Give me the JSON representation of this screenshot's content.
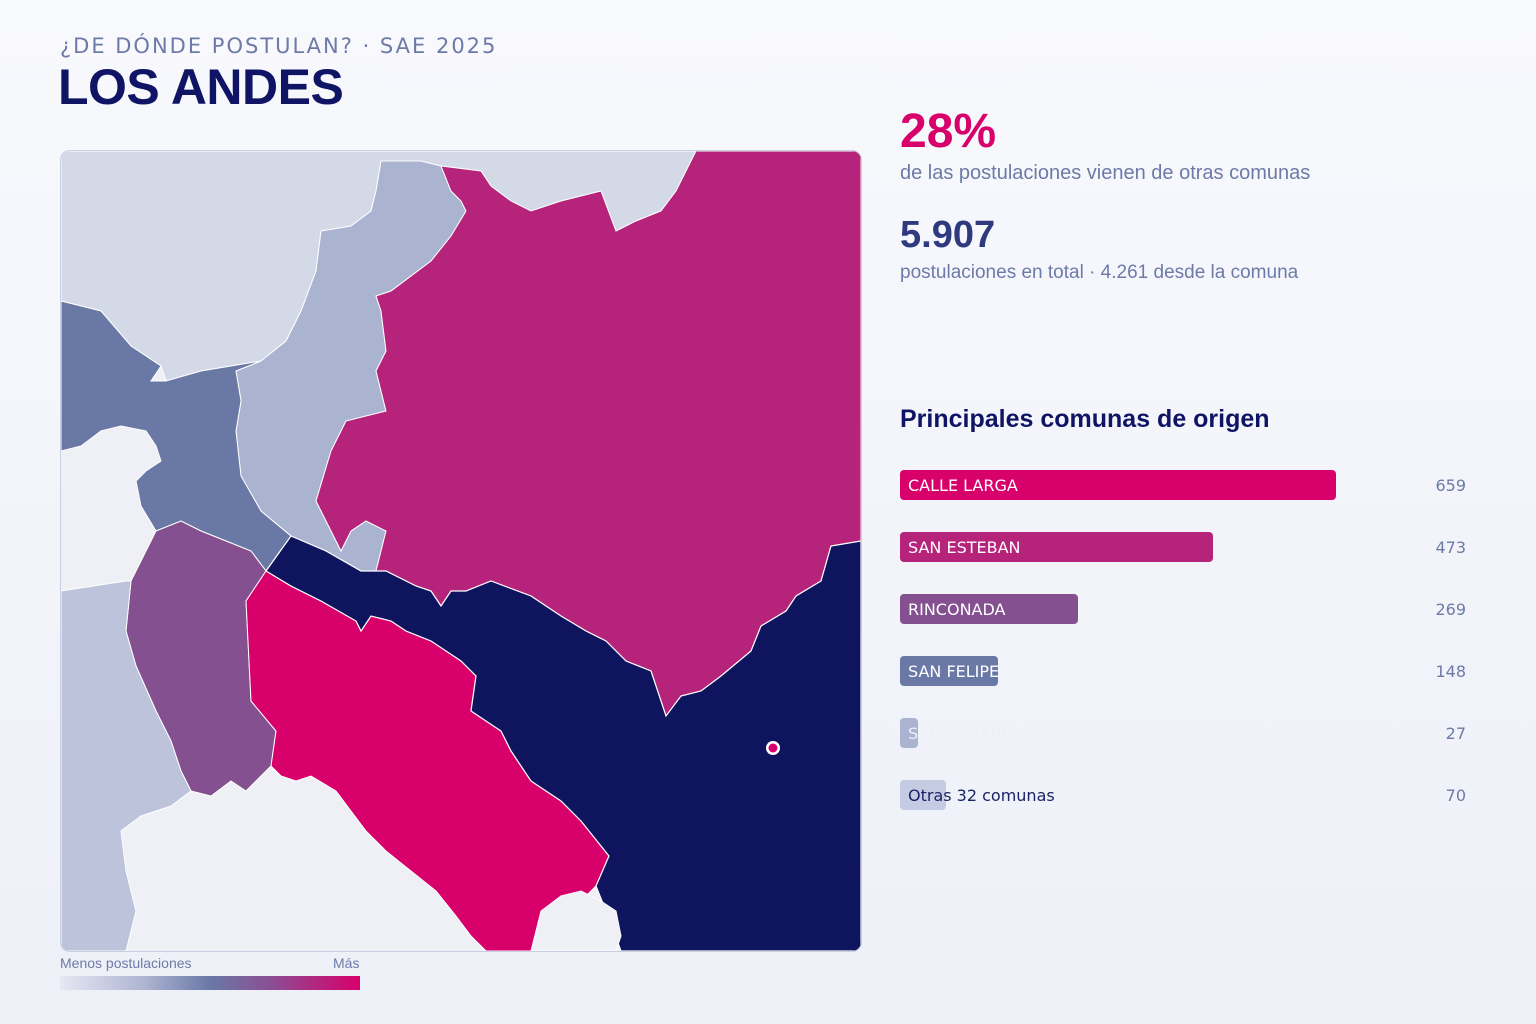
{
  "header": {
    "kicker": "¿DE DÓNDE POSTULAN? · SAE 2025",
    "title": "LOS ANDES"
  },
  "stats": {
    "external_pct": "28%",
    "external_pct_desc": "de las postulaciones vienen de otras comunas",
    "total": "5.907",
    "total_desc": "postulaciones en total · 4.261 desde la comuna"
  },
  "legend": {
    "min_label": "Menos postulaciones",
    "max_label": "Más"
  },
  "ranking": {
    "title": "Principales comunas de origen",
    "items": [
      {
        "label": "CALLE LARGA",
        "value": 659,
        "display": "659",
        "color": "#d8006a"
      },
      {
        "label": "SAN ESTEBAN",
        "value": 473,
        "display": "473",
        "color": "#b5237a"
      },
      {
        "label": "RINCONADA",
        "value": 269,
        "display": "269",
        "color": "#84508f"
      },
      {
        "label": "SAN FELIPE",
        "value": 148,
        "display": "148",
        "color": "#6a78a6"
      },
      {
        "label": "SANTA MARÍA",
        "value": 27,
        "display": "27",
        "color": "#aab3d0"
      },
      {
        "label": "Otras 32 comunas",
        "value": 70,
        "display": "70",
        "color": "#c5cbe2"
      }
    ]
  },
  "map": {
    "colors": {
      "los_andes": "#0e145e",
      "calle_larga": "#d8006a",
      "san_esteban": "#b5237a",
      "rinconada": "#84508f",
      "san_felipe": "#6a78a6",
      "santa_maria": "#aab3d0",
      "putaendo": "#d4d9e8",
      "low": "#bcc3da",
      "none": "#eef0f6"
    }
  }
}
